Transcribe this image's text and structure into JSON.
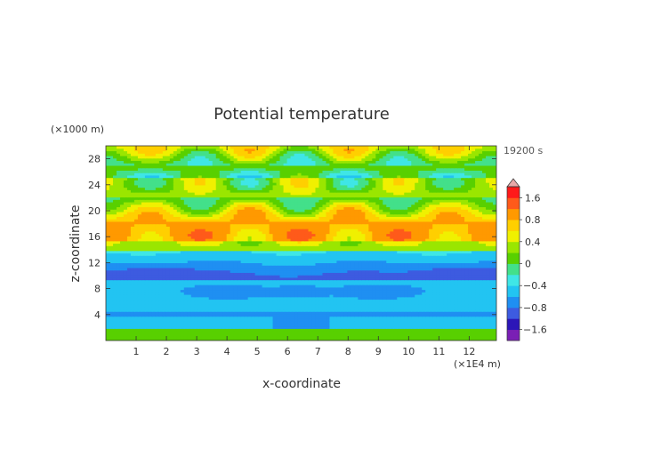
{
  "chart_data": {
    "type": "heatmap",
    "title": "Potential temperature",
    "xlabel": "x-coordinate",
    "ylabel": "z-coordinate",
    "x_unit": "(×1E4 m)",
    "y_unit": "(×1000 m)",
    "time_label": "19200 s",
    "xlim": [
      0,
      12.9
    ],
    "ylim": [
      0,
      30
    ],
    "x_ticks": [
      1,
      2,
      3,
      4,
      5,
      6,
      7,
      8,
      9,
      10,
      11,
      12
    ],
    "y_ticks": [
      4,
      8,
      12,
      16,
      20,
      24,
      28
    ],
    "colorbar_ticks": [
      "1.6",
      "0.8",
      "0.4",
      "0",
      "−0.4",
      "−0.8",
      "−1.6"
    ],
    "colorbar_levels": [
      -2.0,
      -1.6,
      -1.2,
      -0.8,
      -0.6,
      -0.4,
      -0.2,
      0,
      0.2,
      0.4,
      0.6,
      0.8,
      1.2,
      1.6,
      2.0
    ],
    "colorbar_colors": [
      "#7a1fb5",
      "#2c16b8",
      "#3d5be0",
      "#1f8ff2",
      "#22c4f2",
      "#3fe6e6",
      "#43e08a",
      "#58d000",
      "#9ae600",
      "#f0f000",
      "#ffcf00",
      "#ff9900",
      "#ff5a1a",
      "#ff1a1a",
      "#e8a8a8"
    ],
    "field_description_levels": {
      "lower_band_z": [
        0,
        2,
        4.5,
        9.5,
        14
      ],
      "wave_band_z": [
        14,
        29
      ]
    }
  }
}
